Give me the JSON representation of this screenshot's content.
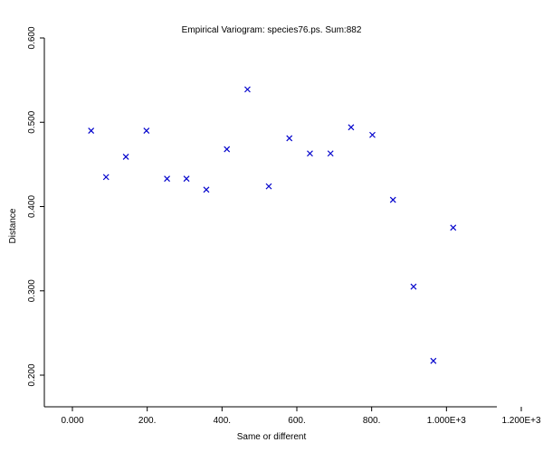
{
  "chart_data": {
    "type": "scatter",
    "title": "Empirical Variogram: species76.ps. Sum:882",
    "xlabel": "Same or different",
    "ylabel": "Distance",
    "xlim": [
      -70,
      1200
    ],
    "ylim": [
      0.16,
      0.6
    ],
    "grid": false,
    "legend": "none",
    "marker": "x",
    "marker_color": "#0000cc",
    "xticks": [
      0,
      200,
      400,
      600,
      800,
      1000,
      1200
    ],
    "xtick_labels": [
      "0.000",
      "200.",
      "400.",
      "600.",
      "800.",
      "1.000E+3",
      "1.200E+3"
    ],
    "yticks": [
      0.2,
      0.3,
      0.4,
      0.5,
      0.6
    ],
    "ytick_labels": [
      "0.200",
      "0.300",
      "0.400",
      "0.500",
      "0.600"
    ],
    "points": [
      {
        "x": 50,
        "y": 0.49
      },
      {
        "x": 90,
        "y": 0.435
      },
      {
        "x": 143,
        "y": 0.459
      },
      {
        "x": 198,
        "y": 0.49
      },
      {
        "x": 253,
        "y": 0.433
      },
      {
        "x": 305,
        "y": 0.433
      },
      {
        "x": 358,
        "y": 0.42
      },
      {
        "x": 413,
        "y": 0.468
      },
      {
        "x": 468,
        "y": 0.539
      },
      {
        "x": 525,
        "y": 0.424
      },
      {
        "x": 580,
        "y": 0.481
      },
      {
        "x": 635,
        "y": 0.463
      },
      {
        "x": 690,
        "y": 0.463
      },
      {
        "x": 745,
        "y": 0.494
      },
      {
        "x": 802,
        "y": 0.485
      },
      {
        "x": 857,
        "y": 0.408
      },
      {
        "x": 912,
        "y": 0.305
      },
      {
        "x": 965,
        "y": 0.217
      },
      {
        "x": 1018,
        "y": 0.375
      }
    ]
  }
}
